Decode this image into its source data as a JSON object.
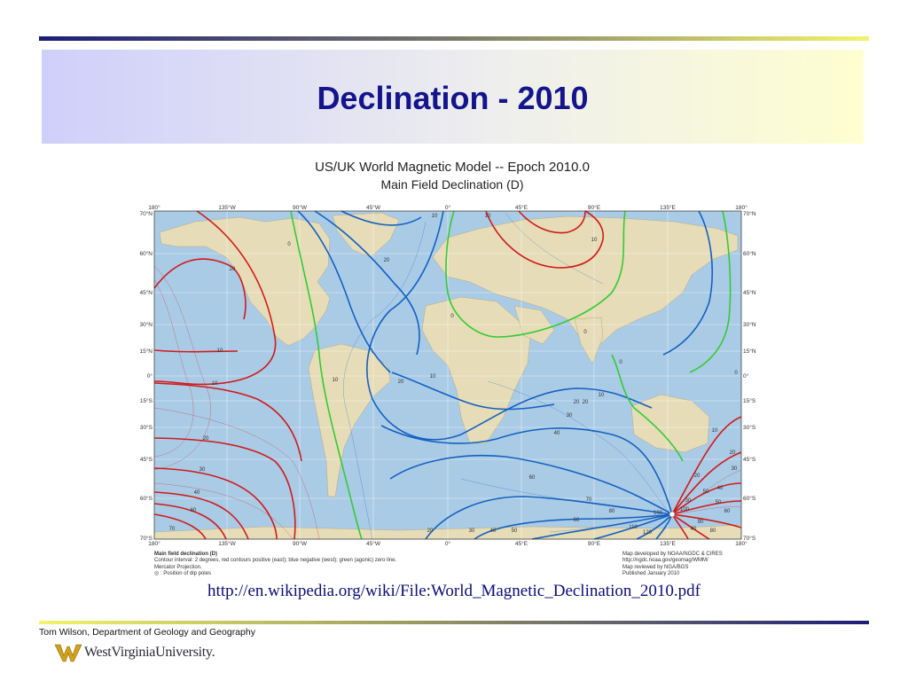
{
  "slide": {
    "title": "Declination - 2010",
    "source_url": "http://en.wikipedia.org/wiki/File:World_Magnetic_Declination_2010.pdf",
    "footer": "Tom Wilson, Department of Geology and Geography",
    "logo_text": "WestVirginiaUniversity."
  },
  "map": {
    "title_line1": "US/UK World Magnetic Model -- Epoch 2010.0",
    "title_line2": "Main Field Declination (D)",
    "lon_labels": [
      "180°",
      "135°W",
      "90°W",
      "45°W",
      "0°",
      "45°E",
      "90°E",
      "135°E",
      "180°"
    ],
    "lat_labels_left": [
      "70°N",
      "60°N",
      "45°N",
      "30°N",
      "15°N",
      "0°",
      "15°S",
      "30°S",
      "45°S",
      "60°S",
      "70°S"
    ],
    "lat_labels_right": [
      "70°N",
      "60°N",
      "45°N",
      "30°N",
      "15°N",
      "0°",
      "15°S",
      "30°S",
      "45°S",
      "60°S",
      "70°S"
    ],
    "contour_labels": [
      "10",
      "20",
      "0",
      "10",
      "20",
      "20",
      "10",
      "0",
      "10",
      "10",
      "0",
      "0",
      "10",
      "20",
      "10",
      "20",
      "30",
      "40",
      "60",
      "70",
      "60",
      "40",
      "30",
      "20",
      "10",
      "20",
      "30",
      "40",
      "50",
      "60",
      "70",
      "80",
      "100",
      "110",
      "120",
      "100",
      "90",
      "80",
      "50",
      "30",
      "20",
      "40",
      "60",
      "10",
      "0",
      "20",
      "30",
      "40",
      "50"
    ],
    "legend_left": {
      "heading": "Main field declination (D)",
      "line1": "Contour interval: 2 degrees, red contours positive (east); blue negative (west); green (agonic) zero line.",
      "line2": "Mercator Projection.",
      "line3": ": Position of dip poles"
    },
    "legend_right": {
      "line1": "Map developed by NOAA/NGDC & CIRES",
      "line2": "http://ngdc.noaa.gov/geomag/WMM/",
      "line3": "Map reviewed by NGA/BGS",
      "line4": "Published January 2010"
    },
    "colors": {
      "positive": "#d11a1a",
      "negative": "#1560c0",
      "agonic": "#33cc33",
      "ocean": "#a9cbe6",
      "land": "#e6dcb8"
    }
  }
}
